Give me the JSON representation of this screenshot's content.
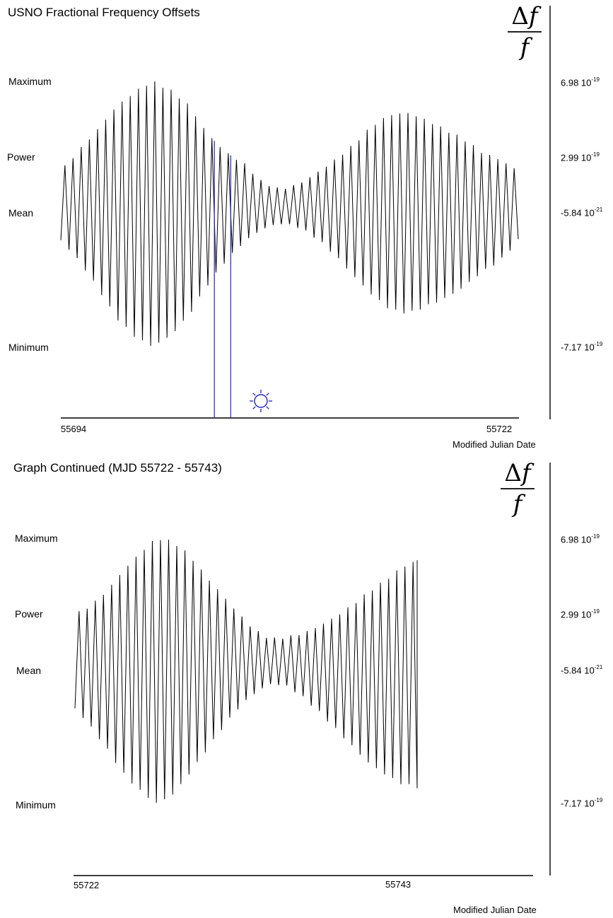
{
  "charts": [
    {
      "title": "USNO Fractional Frequency Offsets",
      "row_labels": {
        "maximum": "Maximum",
        "power": "Power",
        "mean": "Mean",
        "minimum": "Minimum"
      },
      "values": {
        "maximum": "6.98 10",
        "maximum_exp": "-19",
        "power": "2.99 10",
        "power_exp": "-19",
        "mean": "-5.84 10",
        "mean_exp": "-21",
        "minimum": "-7.17 10",
        "minimum_exp": "-19"
      },
      "x_start": "55694",
      "x_end": "55722",
      "xlabel": "Modified Julian Date",
      "marker_icon": "sun-icon",
      "marker_color": "#2222cc"
    },
    {
      "title": "Graph Continued (MJD 55722 - 55743)",
      "row_labels": {
        "maximum": "Maximum",
        "power": "Power",
        "mean": "Mean",
        "minimum": "Minimum"
      },
      "values": {
        "maximum": "6.98 10",
        "maximum_exp": "-19",
        "power": "2.99 10",
        "power_exp": "-19",
        "mean": "-5.84 10",
        "mean_exp": "-21",
        "minimum": "-7.17 10",
        "minimum_exp": "-19"
      },
      "x_start": "55722",
      "x_end": "55743",
      "xlabel": "Modified Julian Date"
    }
  ],
  "chart_data": [
    {
      "type": "line",
      "title": "USNO Fractional Frequency Offsets",
      "xlabel": "Modified Julian Date",
      "xlim": [
        55694,
        55722
      ],
      "ylim": [
        -7.17e-19,
        6.98e-19
      ],
      "samples_per_cycle": 2,
      "sample_step": 0.5,
      "oscillation_note": "semi-diurnal oscillation",
      "upper_envelope": [
        2.2e-19,
        3.3e-19,
        4.4e-19,
        5.6e-19,
        6.4e-19,
        6.98e-19,
        6.5e-19,
        5.7e-19,
        4.2e-19,
        3.2e-19,
        2.6e-19,
        1.6e-19,
        1.2e-19,
        1.5e-19,
        2.1e-19,
        2.8e-19,
        3.6e-19,
        4.6e-19,
        5.2e-19,
        5.3e-19,
        4.9e-19,
        4.4e-19,
        3.9e-19,
        3.2e-19,
        2.8e-19,
        2.2e-19
      ],
      "lower_envelope": [
        -1.5e-19,
        -2.6e-19,
        -4e-19,
        -5.6e-19,
        -6.6e-19,
        -7.17e-19,
        -6.6e-19,
        -5.5e-19,
        -3.9e-19,
        -2.6e-19,
        -1.6e-19,
        -9e-20,
        -6e-20,
        -8e-20,
        -1.4e-19,
        -2.3e-19,
        -3.4e-19,
        -4.4e-19,
        -5.2e-19,
        -5.4e-19,
        -5e-19,
        -4.6e-19,
        -4e-19,
        -3.2e-19,
        -2.6e-19,
        -1.5e-19
      ],
      "markers": [
        {
          "x": 55703.4
        },
        {
          "x": 55704.4
        }
      ]
    },
    {
      "type": "line",
      "title": "Graph Continued (MJD 55722 - 55743)",
      "xlabel": "Modified Julian Date",
      "xlim": [
        55722,
        55743
      ],
      "ylim": [
        -7.17e-19,
        6.98e-19
      ],
      "samples_per_cycle": 2,
      "sample_step": 0.5,
      "oscillation_note": "semi-diurnal oscillation",
      "upper_envelope": [
        2.9e-19,
        3.4e-19,
        4.2e-19,
        5.3e-19,
        6.2e-19,
        6.98e-19,
        6.8e-19,
        6.1e-19,
        5e-19,
        4e-19,
        3e-19,
        2.1e-19,
        1.6e-19,
        1.7e-19,
        1.9e-19,
        2.3e-19,
        2.8e-19,
        3.4e-19,
        4.1e-19,
        4.7e-19,
        5.4e-19,
        5.8e-19
      ],
      "lower_envelope": [
        -2.1e-19,
        -3.1e-19,
        -4.3e-19,
        -5.6e-19,
        -6.5e-19,
        -7.17e-19,
        -6.7e-19,
        -5.6e-19,
        -4.4e-19,
        -3.2e-19,
        -2.1e-19,
        -1.3e-19,
        -8e-20,
        -9e-20,
        -1.5e-19,
        -2.3e-19,
        -3.2e-19,
        -4.1e-19,
        -5e-19,
        -5.6e-19,
        -6.1e-19,
        -6.3e-19
      ],
      "end_value": 5.8e-19
    }
  ]
}
